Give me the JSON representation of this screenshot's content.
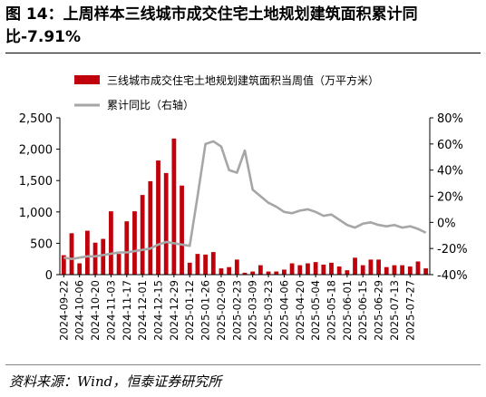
{
  "title": "图 14：上周样本三线城市成交住宅土地规划建筑面积累计同比-7.91%",
  "source": "资料来源：Wind，恒泰证券研究所",
  "chart_data": {
    "type": "bar",
    "series": [
      {
        "name": "三线城市成交住宅土地规划建筑面积当周值（万平方米）",
        "type": "bar",
        "axis": "left",
        "color": "#c0000a",
        "values": [
          310,
          660,
          180,
          700,
          510,
          570,
          1010,
          330,
          850,
          1010,
          1270,
          1490,
          1820,
          1620,
          2170,
          1420,
          190,
          330,
          320,
          360,
          100,
          120,
          240,
          30,
          50,
          150,
          50,
          50,
          80,
          180,
          150,
          180,
          200,
          160,
          190,
          130,
          70,
          270,
          150,
          240,
          240,
          120,
          150,
          150,
          130,
          210,
          100
        ]
      },
      {
        "name": "累计同比（右轴）",
        "type": "line",
        "axis": "right",
        "color": "#a6a6a6",
        "values": [
          -27,
          -28,
          -27,
          -26,
          -26,
          -25,
          -24,
          -23,
          -23,
          -22,
          -21,
          -20,
          -17,
          -15,
          -16,
          -17,
          -18,
          20,
          60,
          62,
          58,
          40,
          38,
          55,
          25,
          20,
          15,
          12,
          8,
          7,
          9,
          10,
          8,
          5,
          6,
          2,
          -2,
          -4,
          -1,
          0,
          -2,
          -3,
          -2,
          -4,
          -3,
          -5,
          -7.91
        ]
      }
    ],
    "x_ticks": [
      "2024-09-22",
      "2024-10-06",
      "2024-10-20",
      "2024-11-03",
      "2024-11-17",
      "2024-12-01",
      "2024-12-15",
      "2024-12-29",
      "2025-01-12",
      "2025-01-26",
      "2025-02-09",
      "2025-02-23",
      "2025-03-09",
      "2025-03-23",
      "2025-04-06",
      "2025-04-20",
      "2025-05-04",
      "2025-05-18",
      "2025-06-01",
      "2025-06-15",
      "2025-06-29",
      "2025-07-13",
      "2025-07-27"
    ],
    "y_left": {
      "min": 0,
      "max": 2500,
      "ticks": [
        "0",
        "500",
        "1,000",
        "1,500",
        "2,000",
        "2,500"
      ]
    },
    "y_right": {
      "min": -40,
      "max": 80,
      "ticks": [
        "-40%",
        "-20%",
        "0%",
        "20%",
        "40%",
        "60%",
        "80%"
      ]
    },
    "legend_position": "top",
    "grid": false
  }
}
